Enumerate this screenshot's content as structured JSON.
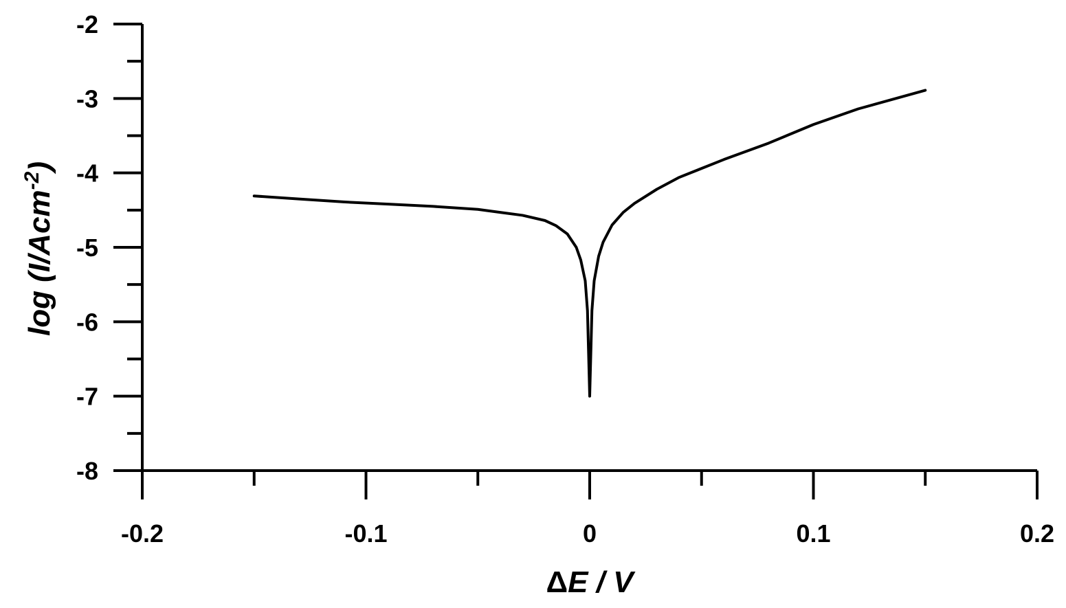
{
  "chart_data": {
    "type": "line",
    "title": "",
    "xlabel_prefix": "Δ",
    "xlabel_var": "E",
    "xlabel_suffix": " / V",
    "ylabel_main": "log (I/Acm",
    "ylabel_sup": "-2",
    "ylabel_close": ")",
    "xlim": [
      -0.2,
      0.2
    ],
    "ylim": [
      -8,
      -2
    ],
    "x_ticks_major": [
      -0.2,
      -0.1,
      0,
      0.1,
      0.2
    ],
    "x_tick_labels": [
      "-0.2",
      "-0.1",
      "0",
      "0.1",
      "0.2"
    ],
    "x_ticks_minor": [
      -0.15,
      -0.05,
      0.05,
      0.15
    ],
    "y_ticks_major": [
      -8,
      -7,
      -6,
      -5,
      -4,
      -3,
      -2
    ],
    "y_tick_labels": [
      "-8",
      "-7",
      "-6",
      "-5",
      "-4",
      "-3",
      "-2"
    ],
    "y_ticks_minor": [
      -7.5,
      -6.5,
      -5.5,
      -4.5,
      -3.5,
      -2.5
    ],
    "grid": false,
    "series": [
      {
        "color": "#000000",
        "x": [
          -0.15,
          -0.13,
          -0.11,
          -0.09,
          -0.07,
          -0.05,
          -0.04,
          -0.03,
          -0.02,
          -0.015,
          -0.01,
          -0.006,
          -0.004,
          -0.002,
          -0.001,
          0,
          0.001,
          0.002,
          0.004,
          0.006,
          0.01,
          0.015,
          0.02,
          0.03,
          0.04,
          0.06,
          0.08,
          0.1,
          0.12,
          0.15
        ],
        "y": [
          -4.31,
          -4.35,
          -4.39,
          -4.42,
          -4.45,
          -4.49,
          -4.53,
          -4.57,
          -4.64,
          -4.71,
          -4.82,
          -5.0,
          -5.17,
          -5.45,
          -5.85,
          -7.0,
          -5.85,
          -5.45,
          -5.12,
          -4.93,
          -4.7,
          -4.53,
          -4.41,
          -4.22,
          -4.06,
          -3.82,
          -3.6,
          -3.35,
          -3.14,
          -2.89
        ]
      }
    ]
  }
}
